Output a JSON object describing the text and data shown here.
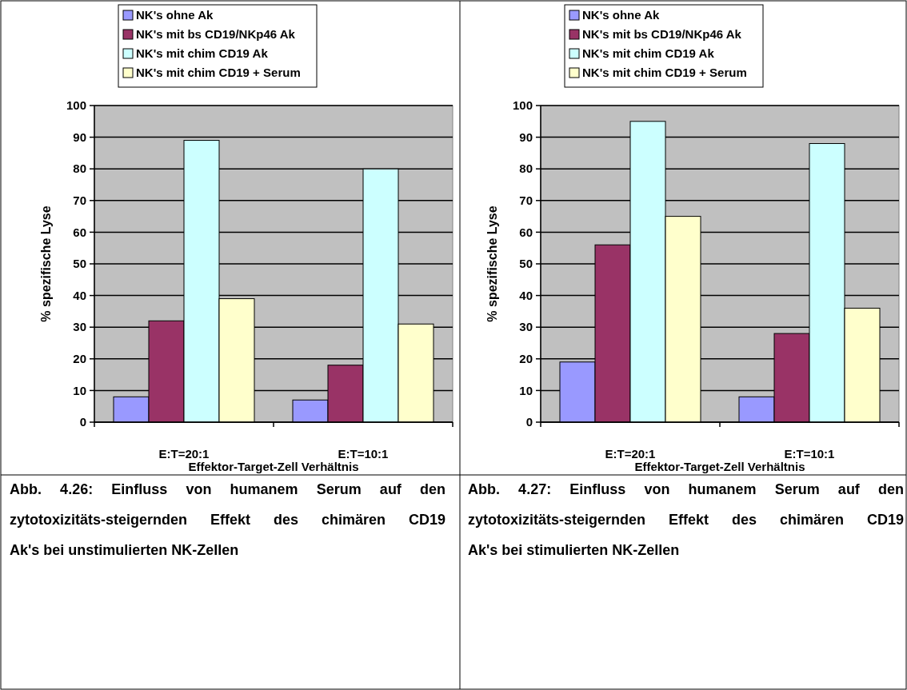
{
  "chart_data": [
    {
      "type": "bar",
      "categories": [
        "E:T=20:1",
        "E:T=10:1"
      ],
      "xlabel": "Effektor-Target-Zell Verhältnis",
      "ylabel": "% spezifische Lyse",
      "ylim": [
        0,
        100
      ],
      "yticks": [
        0,
        10,
        20,
        30,
        40,
        50,
        60,
        70,
        80,
        90,
        100
      ],
      "grid": "y",
      "legend": "top",
      "series": [
        {
          "name": "NK's ohne Ak",
          "color": "#9999ff",
          "values": [
            8,
            7
          ]
        },
        {
          "name": "NK's mit bs CD19/NKp46 Ak",
          "color": "#993366",
          "values": [
            32,
            18
          ]
        },
        {
          "name": "NK's mit chim CD19 Ak",
          "color": "#ccffff",
          "values": [
            89,
            80
          ]
        },
        {
          "name": "NK's mit chim CD19 + Serum",
          "color": "#ffffcc",
          "values": [
            39,
            31
          ]
        }
      ],
      "annotations": [
        "Abb. 4.26: Einfluss von humanem Serum auf den zytotoxizitäts-steigernden Effekt des chimären CD19 Ak's bei unstimulierten NK-Zellen"
      ]
    },
    {
      "type": "bar",
      "categories": [
        "E:T=20:1",
        "E:T=10:1"
      ],
      "xlabel": "Effektor-Target-Zell Verhältnis",
      "ylabel": "% spezifische Lyse",
      "ylim": [
        0,
        100
      ],
      "yticks": [
        0,
        10,
        20,
        30,
        40,
        50,
        60,
        70,
        80,
        90,
        100
      ],
      "grid": "y",
      "legend": "top",
      "series": [
        {
          "name": "NK's ohne Ak",
          "color": "#9999ff",
          "values": [
            19,
            8
          ]
        },
        {
          "name": "NK's mit bs CD19/NKp46 Ak",
          "color": "#993366",
          "values": [
            56,
            28
          ]
        },
        {
          "name": "NK's mit chim CD19 Ak",
          "color": "#ccffff",
          "values": [
            95,
            88
          ]
        },
        {
          "name": "NK's mit chim CD19 + Serum",
          "color": "#ffffcc",
          "values": [
            65,
            36
          ]
        }
      ],
      "annotations": [
        "Abb. 4.27: Einfluss von humanem Serum auf den zytotoxizitäts-steigernden Effekt des chimären CD19 Ak's bei stimulierten NK-Zellen"
      ]
    }
  ]
}
